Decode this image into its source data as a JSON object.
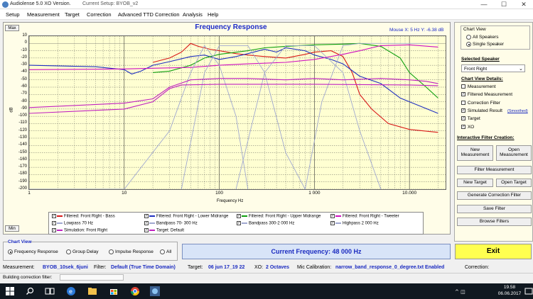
{
  "window": {
    "app_title": "Audiolense 5.0 XO Version.",
    "setup_title": "Current Setup: BYOB_v2",
    "minimize": "—",
    "maximize": "☐",
    "close": "✕"
  },
  "menu": [
    "Setup",
    "Measurement",
    "Target",
    "Correction",
    "Advanced TTD Correction",
    "Analysis",
    "Help"
  ],
  "chart": {
    "max_btn": "Max",
    "min_btn": "Min",
    "title": "Frequency Response",
    "mouse_readout": "Mouse X: 5 Hz   Y: -6.38 dB",
    "y_ticks": [
      "10",
      "0",
      "-10",
      "-20",
      "-30",
      "-40",
      "-50",
      "-60",
      "-70",
      "-80",
      "-90",
      "-100",
      "-110",
      "-120",
      "-130",
      "-140",
      "-150",
      "-160",
      "-170",
      "-180",
      "-190",
      "-200"
    ],
    "x_ticks": [
      "1",
      "10",
      "100",
      "1 000",
      "10.000"
    ],
    "x_axis_label": "Frequency Hz",
    "y_axis_label": "dB"
  },
  "chart_data": {
    "type": "line",
    "title": "Frequency Response",
    "xlabel": "Frequency Hz",
    "ylabel": "dB",
    "x_scale": "log",
    "xlim": [
      1,
      24000
    ],
    "ylim": [
      -200,
      10
    ],
    "grid": true,
    "series": [
      {
        "name": "Filtered: Front Right - Bass",
        "color": "#d81818",
        "x": [
          20,
          30,
          40,
          50,
          60,
          80,
          100,
          150,
          200,
          300,
          500,
          800,
          1000,
          1500,
          2000,
          2500,
          3000,
          4000,
          6000,
          10000,
          20000
        ],
        "y": [
          -26,
          -20,
          -12,
          0,
          -4,
          -8,
          -10,
          -14,
          -16,
          -18,
          -20,
          -15,
          -12,
          -10,
          -18,
          -40,
          -70,
          -90,
          -110,
          -118,
          -122
        ]
      },
      {
        "name": "Filtered: Front Right - Lower Midrange",
        "color": "#2030c0",
        "x": [
          1,
          5,
          10,
          12,
          15,
          20,
          30,
          50,
          70,
          100,
          150,
          200,
          300,
          400,
          500,
          800,
          1000,
          1500,
          2000,
          3000,
          5000,
          8000,
          10000,
          20000
        ],
        "y": [
          -30,
          -32,
          -36,
          -42,
          -38,
          -30,
          -25,
          -18,
          -16,
          -22,
          -18,
          -14,
          -8,
          -12,
          -6,
          -10,
          -16,
          -22,
          -28,
          -45,
          -55,
          -75,
          -80,
          -96
        ]
      },
      {
        "name": "Filtered: Front Right - Upper Midrange",
        "color": "#10a010",
        "x": [
          20,
          30,
          50,
          70,
          100,
          200,
          300,
          500,
          1000,
          2000,
          3000,
          5000,
          8000,
          10000,
          15000,
          20000
        ],
        "y": [
          -40,
          -38,
          -30,
          -20,
          -15,
          -10,
          -6,
          -4,
          -2,
          -1,
          0,
          -4,
          -20,
          -40,
          -60,
          -75
        ]
      },
      {
        "name": "Filtered: Front Right - Tweeter",
        "color": "#d010c0",
        "x": [
          1,
          10,
          20,
          50,
          100,
          200,
          500,
          1000,
          2000,
          3000,
          5000,
          10000,
          20000
        ],
        "y": [
          -36,
          -35,
          -34,
          -33,
          -30,
          -28,
          -26,
          -22,
          -15,
          -10,
          -3,
          -2,
          -5
        ]
      },
      {
        "name": "Lowpass 70 Hz",
        "color": "#a0a8d0",
        "x": [
          1,
          10,
          30,
          50,
          70,
          100,
          150,
          200
        ],
        "y": [
          -200,
          -200,
          -120,
          -40,
          -3,
          -30,
          -100,
          -200
        ]
      },
      {
        "name": "Bandpass 70- 300 Hz",
        "color": "#a0a8d0",
        "x": [
          40,
          70,
          100,
          200,
          300,
          500,
          800
        ],
        "y": [
          -200,
          -40,
          -3,
          -3,
          -40,
          -150,
          -200
        ]
      },
      {
        "name": "Bandpass 300-2 000 Hz",
        "color": "#a0a8d0",
        "x": [
          150,
          300,
          500,
          1000,
          2000,
          3000,
          5000
        ],
        "y": [
          -200,
          -40,
          -3,
          -3,
          -40,
          -120,
          -200
        ]
      },
      {
        "name": "Highpass 2 000 Hz",
        "color": "#a0a8d0",
        "x": [
          800,
          1200,
          2000,
          3000,
          5000,
          20000
        ],
        "y": [
          -200,
          -80,
          -3,
          0,
          0,
          0
        ]
      },
      {
        "name": "Simulation: Front Right",
        "color": "#c020c0",
        "x": [
          1,
          10,
          20,
          30,
          50,
          100,
          200,
          500,
          1000,
          2000,
          5000,
          10000,
          15000,
          20000
        ],
        "y": [
          -88,
          -82,
          -76,
          -60,
          -50,
          -48,
          -48,
          -50,
          -48,
          -50,
          -48,
          -50,
          -52,
          -55
        ]
      },
      {
        "name": "Target: Default",
        "color": "#c020c0",
        "x": [
          1,
          10,
          20,
          30,
          40,
          100,
          1000,
          10000,
          20000
        ],
        "y": [
          -96,
          -90,
          -80,
          -62,
          -57,
          -56,
          -56,
          -57,
          -58
        ]
      }
    ]
  },
  "legend": {
    "items": [
      {
        "label": "Filtered: Front Right - Bass",
        "color": "#d81818"
      },
      {
        "label": "Filtered: Front Right - Lower Midrange",
        "color": "#2030c0"
      },
      {
        "label": "Filtered: Front Right - Upper Midrange",
        "color": "#10a010"
      },
      {
        "label": "Filtered: Front Right - Tweeter",
        "color": "#d010c0"
      },
      {
        "label": "Lowpass 70 Hz",
        "color": "#a0a8d0"
      },
      {
        "label": "Bandpass  70- 300 Hz",
        "color": "#a0a8d0"
      },
      {
        "label": "Bandpass  300-2 000 Hz",
        "color": "#a0a8d0"
      },
      {
        "label": "Highpass 2 000 Hz",
        "color": "#a0a8d0"
      },
      {
        "label": "Simulation: Front Right",
        "color": "#c020c0"
      },
      {
        "label": "Target: Default",
        "color": "#c020c0"
      }
    ]
  },
  "right_panel": {
    "chart_view_title": "Chart View",
    "all_speakers": "All Speakers",
    "single_speaker": "Single Speaker",
    "selected_speaker_title": "Selected Speaker",
    "speaker_value": "Front Right",
    "details_title": "Chart View Details:",
    "details": [
      {
        "label": "Measurement",
        "checked": false
      },
      {
        "label": "Filtered Measurement",
        "checked": true
      },
      {
        "label": "Correction Filter",
        "checked": false
      },
      {
        "label": "Simulated Result",
        "checked": true
      },
      {
        "label": "Target",
        "checked": true
      },
      {
        "label": "XO",
        "checked": true
      }
    ],
    "smoothed": "(Smoothed)",
    "interactive_title": "Interactive Filter Creation:",
    "new_measurement": "New Measurement",
    "open_measurement": "Open Measurement",
    "filter_measurement": "Filter Measurement",
    "new_target": "New Target",
    "open_target": "Open Target",
    "generate_filter": "Generate Correction Filter",
    "save_filter": "Save Filter",
    "browse_filters": "Browse Filters"
  },
  "chart_view_bottom": {
    "title": "Chart View",
    "options": [
      "Frequency Response",
      "Group Delay",
      "Impulse Response",
      "All"
    ]
  },
  "current_frequency": "Current Frequency: 48 000 Hz",
  "exit_label": "Exit",
  "status": {
    "measurement_label": "Measurement:",
    "measurement_value": "BYOB_10sek_6juni",
    "filter_label": "Filter:",
    "filter_value": "Default (True Time Domain)",
    "target_label": "Target:",
    "target_value": "06 jun 17_19 22",
    "xo_label": "XO:",
    "xo_value": "2 Octaves",
    "mic_label": "Mic Calibration:",
    "mic_value": "narrow_band_response_0_degree.txt Enabled",
    "correction_label": "Correction:",
    "building": "Building correction filter:"
  },
  "taskbar": {
    "time": "19.58",
    "date": "06.06.2017"
  }
}
